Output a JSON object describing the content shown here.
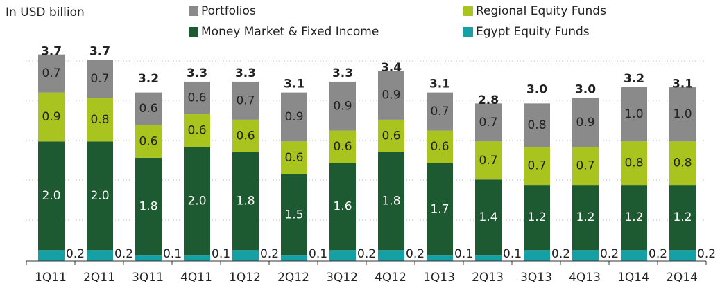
{
  "chart_data": {
    "type": "stacked_bar",
    "unit_label": "In USD billion",
    "categories": [
      "1Q11",
      "2Q11",
      "3Q11",
      "4Q11",
      "1Q12",
      "2Q12",
      "3Q12",
      "4Q12",
      "1Q13",
      "2Q13",
      "3Q13",
      "4Q13",
      "1Q14",
      "2Q14"
    ],
    "series": [
      {
        "name": "Egypt Equity Funds",
        "color": "#15a0a6",
        "values": [
          0.2,
          0.2,
          0.1,
          0.1,
          0.2,
          0.1,
          0.2,
          0.2,
          0.1,
          0.1,
          0.2,
          0.2,
          0.2,
          0.2
        ]
      },
      {
        "name": "Money Market & Fixed Income",
        "color": "#1d5a31",
        "values": [
          2,
          2,
          1.8,
          2,
          1.8,
          1.5,
          1.6,
          1.8,
          1.7,
          1.4,
          1.2,
          1.2,
          1.2,
          1.2
        ],
        "value_labels": [
          "2.0",
          "2.0",
          "1.8",
          "2.0",
          "1.8",
          "1.5",
          "1.6",
          "1.8",
          "1.7",
          "1.4",
          "1.2",
          "1.2",
          "1.2",
          "1.2"
        ]
      },
      {
        "name": "Regional Equity Funds",
        "color": "#a9c41f",
        "values": [
          0.9,
          0.8,
          0.6,
          0.6,
          0.6,
          0.6,
          0.6,
          0.6,
          0.6,
          0.7,
          0.7,
          0.7,
          0.8,
          0.8
        ]
      },
      {
        "name": "Portfolios",
        "color": "#8a8a8a",
        "values": [
          0.7,
          0.7,
          0.6,
          0.6,
          0.7,
          0.9,
          0.9,
          0.9,
          0.7,
          0.7,
          0.8,
          0.9,
          1,
          1
        ],
        "value_labels": [
          "0.7",
          "0.7",
          "0.6",
          "0.6",
          "0.7",
          "0.9",
          "0.9",
          "0.9",
          "0.7",
          "0.7",
          "0.8",
          "0.9",
          "1.0",
          "1.0"
        ]
      }
    ],
    "totals": [
      3.7,
      3.7,
      3.2,
      3.3,
      3.3,
      3.1,
      3.3,
      3.4,
      3.1,
      2.8,
      3,
      3,
      3.2,
      3.1
    ],
    "totals_labels": [
      "3.7",
      "3.7",
      "3.2",
      "3.3",
      "3.3",
      "3.1",
      "3.3",
      "3.4",
      "3.1",
      "2.8",
      "3.0",
      "3.0",
      "3.2",
      "3.1"
    ],
    "ylim": [
      0,
      4
    ]
  }
}
